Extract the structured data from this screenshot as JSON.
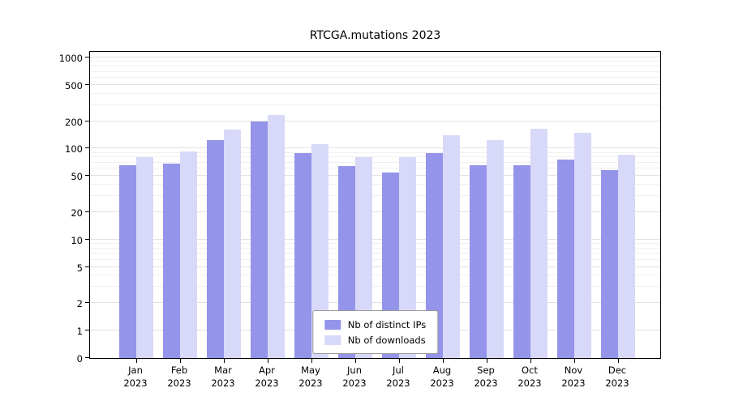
{
  "chart_data": {
    "type": "bar",
    "title": "RTCGA.mutations 2023",
    "categories": [
      "Jan",
      "Feb",
      "Mar",
      "Apr",
      "May",
      "Jun",
      "Jul",
      "Aug",
      "Sep",
      "Oct",
      "Nov",
      "Dec"
    ],
    "year_label": "2023",
    "series": [
      {
        "name": "Nb of distinct IPs",
        "color": "#9494ea",
        "values": [
          65,
          68,
          125,
          200,
          90,
          64,
          54,
          90,
          66,
          66,
          75,
          58
        ]
      },
      {
        "name": "Nb of downloads",
        "color": "#d8d8f8",
        "values": [
          80,
          92,
          160,
          235,
          112,
          80,
          80,
          140,
          125,
          165,
          150,
          85
        ]
      }
    ],
    "yscale": "symlog",
    "yticks": [
      0,
      1,
      2,
      5,
      10,
      20,
      50,
      100,
      200,
      500,
      1000
    ],
    "ylim": [
      0,
      1000
    ],
    "grid": true,
    "legend_position": "bottom-center"
  }
}
